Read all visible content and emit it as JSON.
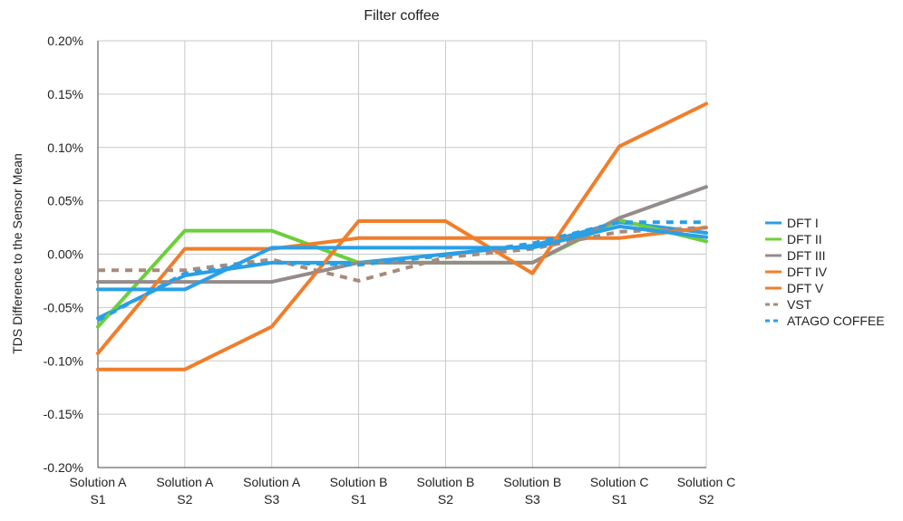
{
  "chart_data": {
    "type": "line",
    "title": "Filter coffee",
    "xlabel": "",
    "ylabel": "TDS Difference to the Sensor Mean",
    "ylim": [
      -0.2,
      0.2
    ],
    "y_ticks": [
      0.2,
      0.15,
      0.1,
      0.05,
      0.0,
      -0.05,
      -0.1,
      -0.15,
      -0.2
    ],
    "y_tick_labels": [
      "0.20%",
      "0.15%",
      "0.10%",
      "0.05%",
      "0.00%",
      "-0.05%",
      "-0.10%",
      "-0.15%",
      "-0.20%"
    ],
    "y_unit": "%",
    "grid": true,
    "legend_position": "right",
    "categories": [
      [
        "Solution A",
        "S1"
      ],
      [
        "Solution A",
        "S2"
      ],
      [
        "Solution A",
        "S3"
      ],
      [
        "Solution B",
        "S1"
      ],
      [
        "Solution B",
        "S2"
      ],
      [
        "Solution B",
        "S3"
      ],
      [
        "Solution C",
        "S1"
      ],
      [
        "Solution C",
        "S2"
      ]
    ],
    "series": [
      {
        "name": "DFT I",
        "color": "#2a9fe6",
        "dash": "solid",
        "values": [
          -0.06,
          -0.02,
          -0.008,
          -0.008,
          0.0,
          0.008,
          0.03,
          0.02
        ]
      },
      {
        "name": "DFT II",
        "color": "#6ccf3a",
        "dash": "solid",
        "values": [
          -0.068,
          0.022,
          0.022,
          -0.008,
          -0.008,
          -0.008,
          0.032,
          0.012
        ]
      },
      {
        "name": "DFT  III",
        "color": "#948b8b",
        "dash": "solid",
        "values": [
          -0.026,
          -0.026,
          -0.026,
          -0.008,
          -0.008,
          -0.008,
          0.034,
          0.063
        ]
      },
      {
        "name": "DFT  IV",
        "color": "#f07e2b",
        "dash": "solid",
        "values": [
          -0.108,
          -0.108,
          -0.068,
          0.031,
          0.031,
          -0.018,
          0.101,
          0.141
        ]
      },
      {
        "name": "DFT V",
        "color": "#f07e2b",
        "dash": "solid",
        "values": [
          -0.093,
          0.005,
          0.005,
          0.015,
          0.015,
          0.015,
          0.015,
          0.025
        ]
      },
      {
        "name": "VST",
        "color": "#a78b7e",
        "dash": "dashed",
        "values": [
          -0.015,
          -0.015,
          -0.005,
          -0.025,
          -0.003,
          0.005,
          0.021,
          0.025
        ]
      },
      {
        "name": "ATAGO COFFEE",
        "color": "#2a9fe6",
        "dash": "dashed",
        "values": [
          -0.062,
          -0.018,
          -0.008,
          -0.01,
          -0.001,
          0.01,
          0.03,
          0.03
        ]
      },
      {
        "name": "",
        "color": "#2a9fe6",
        "dash": "solid",
        "values": [
          -0.033,
          -0.033,
          0.006,
          0.006,
          0.006,
          0.006,
          0.026,
          0.016
        ]
      }
    ]
  }
}
